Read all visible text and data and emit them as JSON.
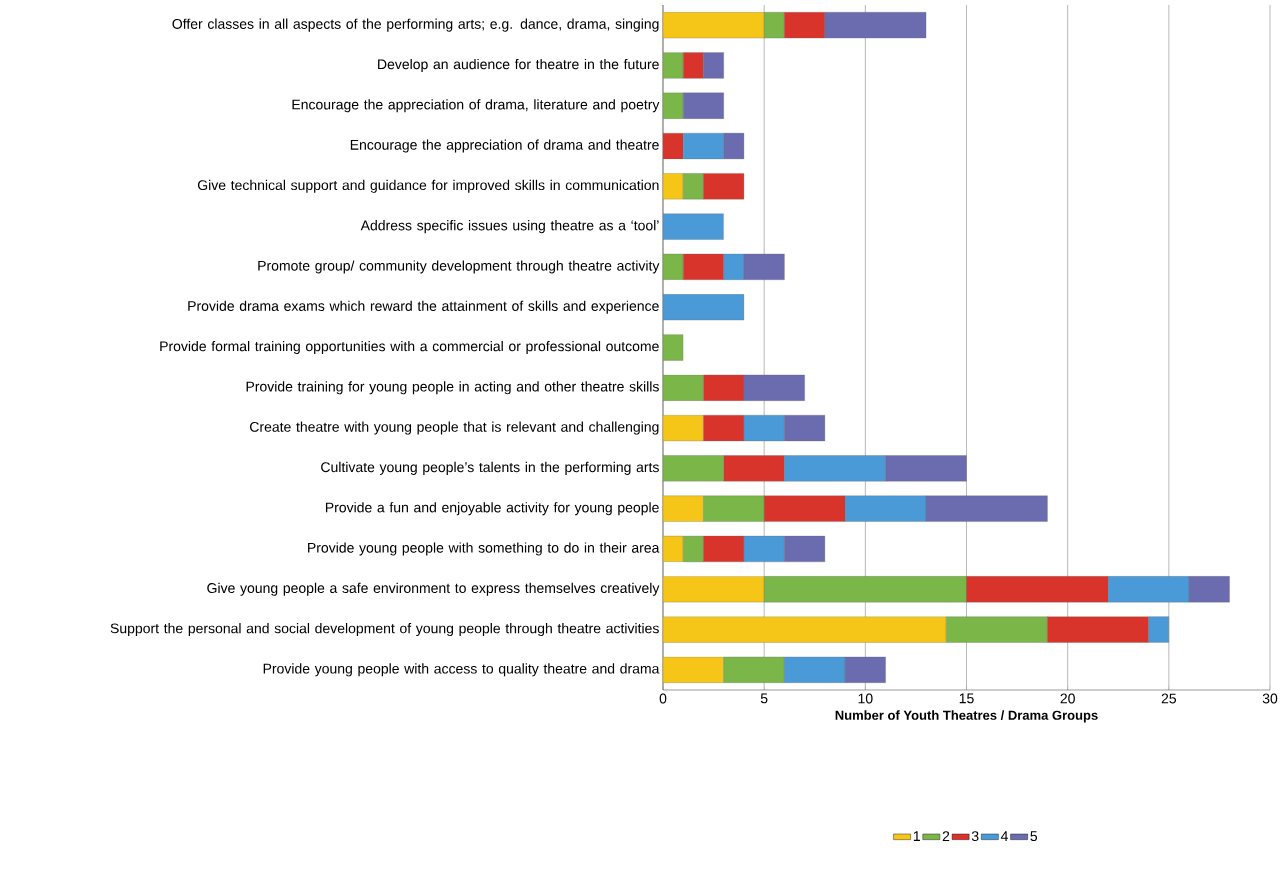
{
  "chart_data": {
    "type": "bar",
    "orientation": "horizontal",
    "stacked": true,
    "xlabel": "Number of Youth Theatres / Drama Groups",
    "categories": [
      "Offer classes in all aspects of the performing arts; e.g. dance, drama, singing",
      "Develop an audience for theatre in the future",
      "Encourage the appreciation of drama, literature and poetry",
      "Encourage the appreciation of drama and theatre",
      "Give technical support and guidance for improved skills in communication",
      "Address specific issues using theatre as a ‘tool’",
      "Promote group/ community development through theatre activity",
      "Provide drama exams which reward the attainment of skills and experience",
      "Provide formal training opportunities with a commercial or professional outcome",
      "Provide training for young people in acting and other theatre skills",
      "Create theatre with young people that is relevant and challenging",
      "Cultivate young people’s talents in the performing arts",
      "Provide a fun and enjoyable activity for young people",
      "Provide young people with something to do in their area",
      "Give young people a safe environment to express themselves creatively",
      "Support the personal and social development of young people through theatre activities",
      "Provide young people with access to quality theatre and drama"
    ],
    "series": [
      {
        "name": "1",
        "color": "#f5c518",
        "values": [
          5,
          null,
          null,
          null,
          1,
          null,
          null,
          null,
          null,
          null,
          2,
          null,
          2,
          1,
          5,
          14,
          3
        ]
      },
      {
        "name": "2",
        "color": "#7ab648",
        "values": [
          1,
          1,
          1,
          null,
          1,
          null,
          1,
          null,
          1,
          2,
          null,
          3,
          3,
          1,
          10,
          5,
          3
        ]
      },
      {
        "name": "3",
        "color": "#d9342b",
        "values": [
          2,
          1,
          null,
          1,
          2,
          null,
          2,
          null,
          null,
          2,
          2,
          3,
          4,
          2,
          7,
          5,
          null
        ]
      },
      {
        "name": "4",
        "color": "#4a9ad8",
        "values": [
          null,
          null,
          null,
          2,
          null,
          3,
          1,
          4,
          null,
          null,
          2,
          5,
          4,
          2,
          4,
          1,
          3
        ]
      },
      {
        "name": "5",
        "color": "#6b6bb0",
        "values": [
          5,
          1,
          2,
          1,
          null,
          null,
          2,
          null,
          null,
          3,
          2,
          4,
          6,
          2,
          2,
          null,
          2
        ]
      }
    ],
    "xlim": [
      0,
      30
    ],
    "xticks": [
      0,
      5,
      10,
      15,
      20,
      25,
      30
    ],
    "grid": "x",
    "legend": "bottom"
  }
}
